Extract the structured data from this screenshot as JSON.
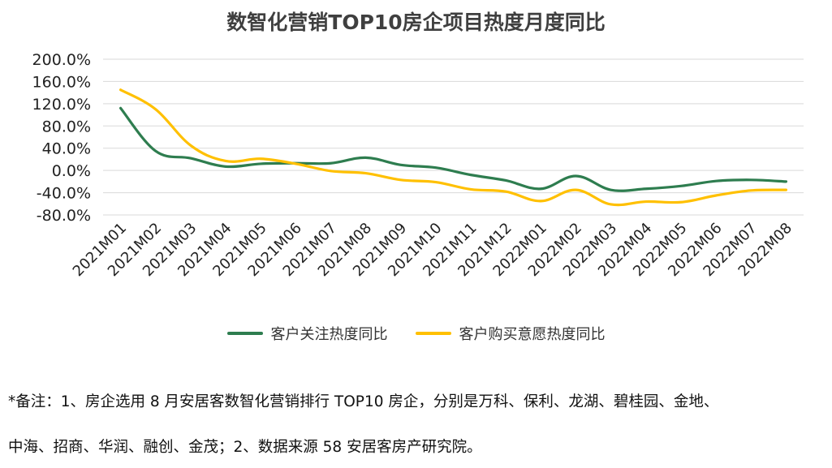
{
  "chart_data": {
    "type": "line",
    "title": "数智化营销TOP10房企项目热度月度同比",
    "categories": [
      "2021M01",
      "2021M02",
      "2021M03",
      "2021M04",
      "2021M05",
      "2021M06",
      "2021M07",
      "2021M08",
      "2021M09",
      "2021M10",
      "2021M11",
      "2021M12",
      "2022M01",
      "2022M02",
      "2022M03",
      "2022M04",
      "2022M05",
      "2022M06",
      "2022M07",
      "2022M08"
    ],
    "series": [
      {
        "name": "客户关注热度同比",
        "color": "#2e7d4f",
        "values": [
          112,
          35,
          22,
          7,
          12,
          13,
          13,
          23,
          10,
          5,
          -8,
          -18,
          -33,
          -10,
          -35,
          -33,
          -28,
          -19,
          -17,
          -20
        ]
      },
      {
        "name": "客户购买意愿热度同比",
        "color": "#ffc000",
        "values": [
          145,
          110,
          45,
          17,
          21,
          12,
          -1,
          -5,
          -17,
          -21,
          -34,
          -38,
          -55,
          -35,
          -61,
          -56,
          -57,
          -45,
          -36,
          -35
        ]
      }
    ],
    "yticks": [
      "200.0%",
      "160.0%",
      "120.0%",
      "80.0%",
      "40.0%",
      "0.0%",
      "-40.0%",
      "-80.0%"
    ],
    "ylim": [
      -80,
      200
    ],
    "xlabel": "",
    "ylabel": "",
    "legend": "bottom"
  },
  "notes": {
    "line1": "*备注：1、房企选用 8 月安居客数智化营销排行 TOP10 房企，分别是万科、保利、龙湖、碧桂园、金地、",
    "line2": "中海、招商、华润、融创、金茂；2、数据来源 58 安居客房产研究院。"
  }
}
